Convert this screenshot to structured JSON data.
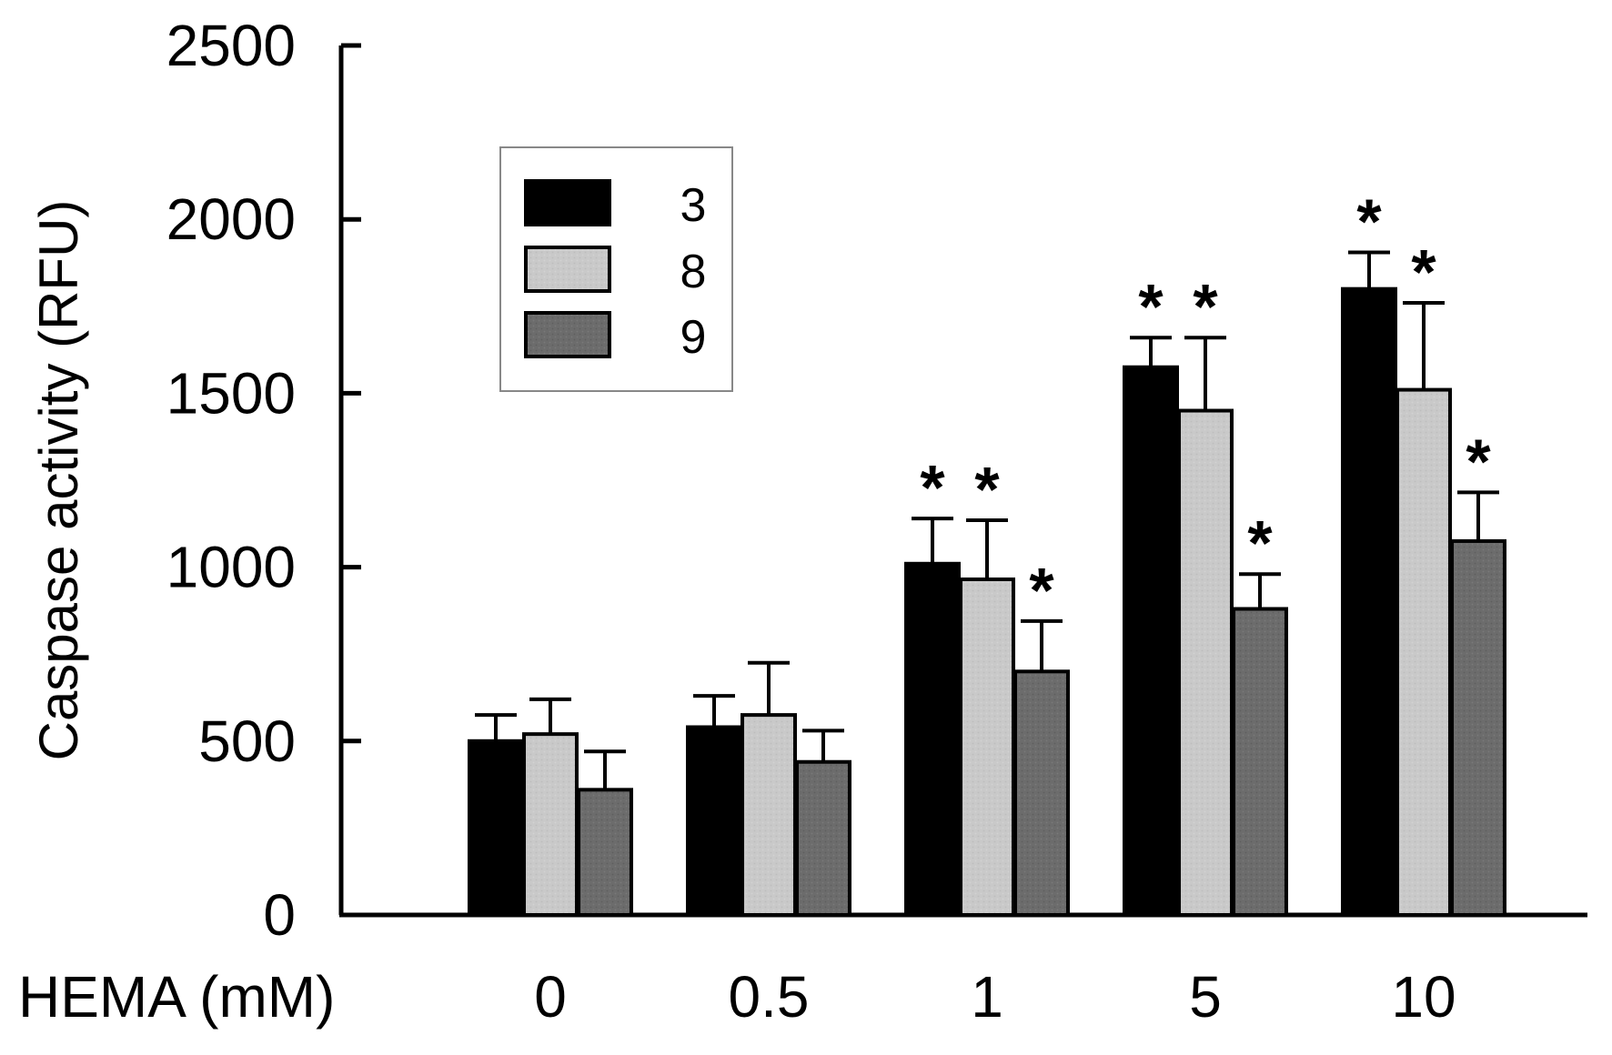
{
  "chart_data": {
    "type": "bar",
    "title": "",
    "xlabel": "HEMA (mM)",
    "ylabel": "Caspase activity (RFU)",
    "ylim": [
      0,
      2500
    ],
    "yticks": [
      0,
      500,
      1000,
      1500,
      2000,
      2500
    ],
    "grid": false,
    "legend_position": "top-left",
    "categories": [
      "0",
      "0.5",
      "1",
      "5",
      "10"
    ],
    "series": [
      {
        "name": "3",
        "color": "#000000",
        "values": [
          500,
          540,
          1010,
          1575,
          1800
        ],
        "errors": [
          75,
          90,
          130,
          85,
          105
        ],
        "significant": [
          false,
          false,
          true,
          true,
          true
        ]
      },
      {
        "name": "8",
        "color": "#c6c6c6",
        "values": [
          520,
          575,
          965,
          1450,
          1510
        ],
        "errors": [
          100,
          150,
          170,
          210,
          250
        ],
        "significant": [
          false,
          false,
          true,
          true,
          true
        ]
      },
      {
        "name": "9",
        "color": "#6c6c6c",
        "values": [
          360,
          440,
          700,
          880,
          1075
        ],
        "errors": [
          110,
          90,
          145,
          100,
          140
        ],
        "significant": [
          false,
          false,
          true,
          true,
          true
        ]
      }
    ],
    "significance_symbol": "*"
  }
}
